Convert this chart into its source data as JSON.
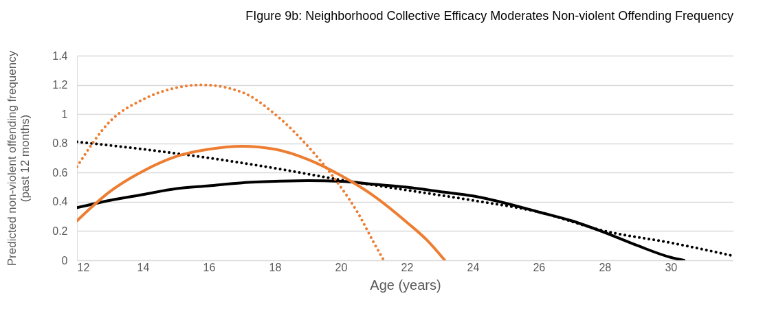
{
  "chart_data": {
    "type": "line",
    "title": "FIgure 9b: Neighborhood Collective Efficacy Moderates Non-violent Offending Frequency",
    "xlabel": "Age (years)",
    "ylabel": "Predicted non-violent offending  frequency\n(past 12 months)",
    "xlim": [
      12,
      31.9
    ],
    "xticks": [
      12,
      14,
      16,
      18,
      20,
      22,
      24,
      26,
      28,
      30
    ],
    "ylim": [
      0,
      1.4
    ],
    "yticks": [
      0,
      0.2,
      0.4,
      0.6,
      0.8,
      1,
      1.2,
      1.4
    ],
    "grid": "y",
    "legend": false,
    "marker": "none",
    "series": [
      {
        "color": "#000000",
        "line_style": "solid",
        "x": [
          12,
          13,
          14,
          15,
          16,
          17,
          18,
          19,
          20,
          21,
          22,
          23,
          24,
          25,
          26,
          27,
          28,
          29,
          30,
          30.4
        ],
        "values": [
          0.36,
          0.41,
          0.45,
          0.49,
          0.51,
          0.53,
          0.54,
          0.545,
          0.54,
          0.52,
          0.5,
          0.47,
          0.44,
          0.39,
          0.33,
          0.27,
          0.19,
          0.1,
          0.02,
          0
        ]
      },
      {
        "color": "#000000",
        "line_style": "dotted",
        "x": [
          12,
          14,
          16,
          18,
          20,
          22,
          24,
          26,
          28,
          30,
          31.9
        ],
        "values": [
          0.81,
          0.76,
          0.7,
          0.63,
          0.55,
          0.48,
          0.41,
          0.33,
          0.2,
          0.12,
          0.03
        ]
      },
      {
        "color": "#ed7d31",
        "line_style": "solid",
        "x": [
          12,
          13,
          14,
          15,
          16,
          17,
          18,
          19,
          20,
          21,
          22,
          22.6,
          23.15
        ],
        "values": [
          0.27,
          0.47,
          0.61,
          0.71,
          0.76,
          0.78,
          0.76,
          0.69,
          0.58,
          0.44,
          0.26,
          0.14,
          0
        ]
      },
      {
        "color": "#ed7d31",
        "line_style": "dotted",
        "x": [
          12,
          13,
          14,
          15,
          15.8,
          17,
          18,
          19,
          20,
          20.5,
          21,
          21.3
        ],
        "values": [
          0.64,
          0.95,
          1.1,
          1.18,
          1.2,
          1.15,
          1.0,
          0.78,
          0.5,
          0.33,
          0.12,
          0
        ]
      }
    ]
  }
}
